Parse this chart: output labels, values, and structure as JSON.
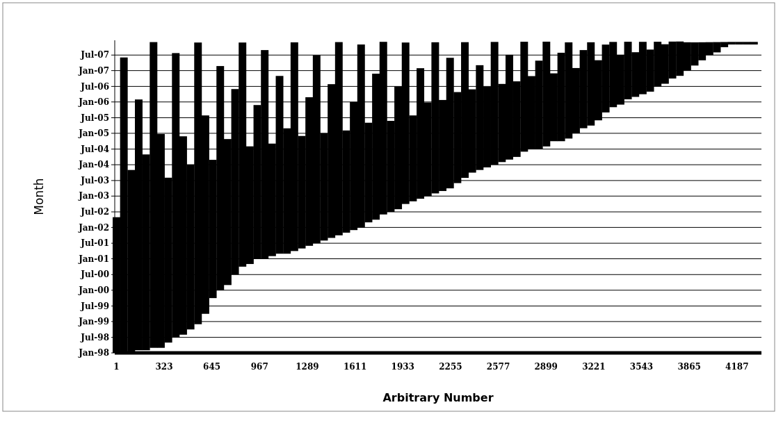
{
  "chart_data": {
    "type": "bar",
    "xlabel": "Arbitrary Number",
    "ylabel": "Month",
    "color": "#000000",
    "grid": "y",
    "x": [
      1,
      51,
      101,
      151,
      201,
      251,
      301,
      351,
      401,
      451,
      501,
      551,
      601,
      651,
      701,
      751,
      801,
      851,
      901,
      951,
      1001,
      1051,
      1101,
      1151,
      1201,
      1251,
      1301,
      1351,
      1401,
      1451,
      1501,
      1551,
      1601,
      1651,
      1701,
      1751,
      1801,
      1851,
      1901,
      1951,
      2001,
      2051,
      2101,
      2151,
      2201,
      2251,
      2301,
      2351,
      2401,
      2451,
      2501,
      2551,
      2601,
      2651,
      2701,
      2751,
      2801,
      2851,
      2901,
      2951,
      3001,
      3051,
      3101,
      3151,
      3201,
      3251,
      3301,
      3351,
      3401,
      3451,
      3501,
      3551,
      3601,
      3651,
      3701,
      3751,
      3801,
      3851,
      3901,
      3951,
      4001,
      4051,
      4101,
      4151,
      4201,
      4251,
      4301
    ],
    "values": [
      1580,
      3440,
      2130,
      2920,
      2280,
      3560,
      2490,
      1920,
      3310,
      2310,
      1920,
      3280,
      2310,
      1610,
      2610,
      1700,
      2160,
      2610,
      1370,
      1790,
      2430,
      1310,
      2070,
      1460,
      2430,
      1310,
      1730,
      2190,
      1250,
      1790,
      2250,
      1190,
      1490,
      2130,
      1160,
      1700,
      2010,
      1060,
      1430,
      1880,
      1000,
      1520,
      1090,
      1760,
      1060,
      1520,
      1060,
      1580,
      970,
      1220,
      940,
      1430,
      910,
      1220,
      880,
      1280,
      850,
      1030,
      1220,
      790,
      1030,
      1120,
      760,
      910,
      970,
      700,
      790,
      760,
      580,
      670,
      520,
      610,
      490,
      520,
      460,
      430,
      400,
      330,
      270,
      210,
      150,
      120,
      60,
      30,
      30,
      30,
      30
    ],
    "base": [
      10227,
      10227,
      10227,
      10258,
      10258,
      10286,
      10286,
      10347,
      10408,
      10439,
      10500,
      10561,
      10682,
      10865,
      10957,
      11017,
      11139,
      11231,
      11262,
      11323,
      11323,
      11354,
      11382,
      11382,
      11413,
      11443,
      11474,
      11504,
      11535,
      11566,
      11596,
      11627,
      11657,
      11688,
      11747,
      11778,
      11839,
      11869,
      11900,
      11961,
      11992,
      12022,
      12053,
      12084,
      12112,
      12143,
      12204,
      12265,
      12326,
      12357,
      12387,
      12418,
      12449,
      12478,
      12509,
      12570,
      12600,
      12600,
      12631,
      12692,
      12692,
      12723,
      12784,
      12843,
      12874,
      12935,
      13027,
      13088,
      13118,
      13180,
      13208,
      13239,
      13269,
      13330,
      13361,
      13422,
      13453,
      13514,
      13573,
      13634,
      13695,
      13726,
      13787,
      13818,
      13818,
      13818,
      13818
    ],
    "xlim": [
      -10,
      4352
    ],
    "xticks": [
      1,
      323,
      645,
      967,
      1289,
      1611,
      1933,
      2255,
      2577,
      2899,
      3221,
      3543,
      3865,
      4187
    ],
    "ylim": [
      "1998-01-01",
      "2007-12-20"
    ],
    "yticks": [
      {
        "value": "1998-01",
        "label": "Jan-98"
      },
      {
        "value": "1998-07",
        "label": "Jul-98"
      },
      {
        "value": "1999-01",
        "label": "Jan-99"
      },
      {
        "value": "1999-07",
        "label": "Jul-99"
      },
      {
        "value": "2000-01",
        "label": "Jan-00"
      },
      {
        "value": "2000-07",
        "label": "Jul-00"
      },
      {
        "value": "2001-01",
        "label": "Jan-01"
      },
      {
        "value": "2001-07",
        "label": "Jul-01"
      },
      {
        "value": "2002-01",
        "label": "Jan-02"
      },
      {
        "value": "2002-07",
        "label": "Jul-02"
      },
      {
        "value": "2003-01",
        "label": "Jan-03"
      },
      {
        "value": "2003-07",
        "label": "Jul-03"
      },
      {
        "value": "2004-01",
        "label": "Jan-04"
      },
      {
        "value": "2004-07",
        "label": "Jul-04"
      },
      {
        "value": "2005-01",
        "label": "Jan-05"
      },
      {
        "value": "2005-07",
        "label": "Jul-05"
      },
      {
        "value": "2006-01",
        "label": "Jan-06"
      },
      {
        "value": "2006-07",
        "label": "Jul-06"
      },
      {
        "value": "2007-01",
        "label": "Jan-07"
      },
      {
        "value": "2007-07",
        "label": "Jul-07"
      }
    ]
  }
}
